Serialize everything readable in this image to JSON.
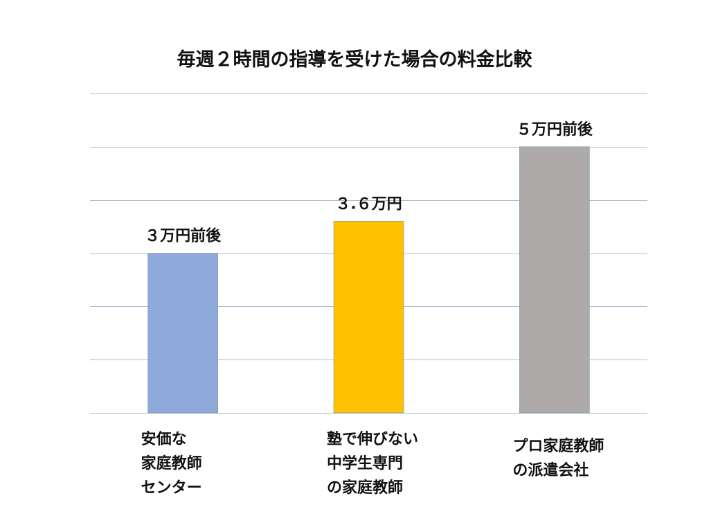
{
  "chart_data": {
    "type": "bar",
    "title": "毎週２時間の指導を受けた場合の料金比較",
    "categories": [
      [
        "安価な",
        "家庭教師",
        "センター"
      ],
      [
        "塾で伸びない",
        "中学生専門",
        "の家庭教師"
      ],
      [
        "プロ家庭教師",
        "の派遣会社"
      ]
    ],
    "values": [
      3,
      3.6,
      5
    ],
    "data_labels": [
      "３万円前後",
      "３.６万円",
      "５万円前後"
    ],
    "colors": [
      "#8eaadb",
      "#ffc000",
      "#aeaaaa"
    ],
    "ylim": [
      0,
      6
    ],
    "y_gridlines": [
      0,
      1,
      2,
      3,
      4,
      5,
      6
    ],
    "y_tick_labels_shown": false,
    "grid": true,
    "xlabel": "",
    "ylabel": ""
  }
}
